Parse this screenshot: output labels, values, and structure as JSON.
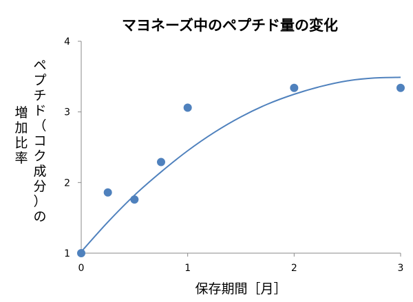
{
  "chart_data": {
    "type": "scatter",
    "title": "マヨネーズ中のペプチド量の変化",
    "xlabel": "保存期間［月］",
    "ylabel_line1": "ペプチド（コク成分）の",
    "ylabel_line2": "増加比率",
    "xlim": [
      0,
      3
    ],
    "ylim": [
      1,
      4
    ],
    "x_ticks": [
      0,
      1,
      2,
      3
    ],
    "y_ticks": [
      1,
      2,
      3,
      4
    ],
    "grid": false,
    "points": [
      {
        "x": 0,
        "y": 1.0
      },
      {
        "x": 0.25,
        "y": 1.86
      },
      {
        "x": 0.5,
        "y": 1.76
      },
      {
        "x": 0.75,
        "y": 2.29
      },
      {
        "x": 1.0,
        "y": 3.06
      },
      {
        "x": 2.0,
        "y": 3.34
      },
      {
        "x": 3.0,
        "y": 3.34
      }
    ],
    "trendline": {
      "type": "polynomial",
      "samples": [
        {
          "x": 0,
          "y": 1.02
        },
        {
          "x": 0.25,
          "y": 1.44
        },
        {
          "x": 0.5,
          "y": 1.82
        },
        {
          "x": 0.75,
          "y": 2.15
        },
        {
          "x": 1.0,
          "y": 2.45
        },
        {
          "x": 1.25,
          "y": 2.71
        },
        {
          "x": 1.5,
          "y": 2.93
        },
        {
          "x": 1.75,
          "y": 3.11
        },
        {
          "x": 2.0,
          "y": 3.25
        },
        {
          "x": 2.25,
          "y": 3.36
        },
        {
          "x": 2.5,
          "y": 3.44
        },
        {
          "x": 2.75,
          "y": 3.48
        },
        {
          "x": 3.0,
          "y": 3.49
        }
      ]
    },
    "colors": {
      "marker": "#4f81bd",
      "line": "#4f81bd",
      "axis": "#888888"
    }
  }
}
